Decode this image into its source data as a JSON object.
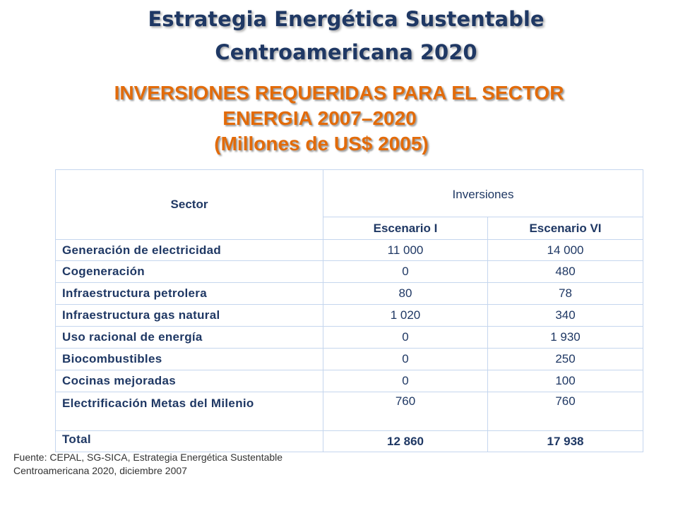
{
  "title": {
    "line1": "Estrategia Energética Sustentable",
    "line2": "Centroamericana 2020"
  },
  "subtitle": {
    "line1": "INVERSIONES  REQUERIDAS PARA  EL SECTOR",
    "line2": "ENERGIA 2007–2020",
    "line3": "(Millones de  US$ 2005)"
  },
  "table": {
    "sector_header": "Sector",
    "group_header": "Inversiones",
    "columns": [
      "Escenario I",
      "Escenario VI"
    ],
    "rows": [
      {
        "sector": "Generación de electricidad",
        "esc1": "11 000",
        "esc6": "14 000"
      },
      {
        "sector": "Cogeneración",
        "esc1": "0",
        "esc6": "480"
      },
      {
        "sector": "Infraestructura petrolera",
        "esc1": "80",
        "esc6": "78"
      },
      {
        "sector": "Infraestructura gas natural",
        "esc1": "1 020",
        "esc6": "340"
      },
      {
        "sector": "Uso racional de energía",
        "esc1": "0",
        "esc6": "1 930"
      },
      {
        "sector": "Biocombustibles",
        "esc1": "0",
        "esc6": "250"
      },
      {
        "sector": "Cocinas mejoradas",
        "esc1": "0",
        "esc6": "100"
      },
      {
        "sector": "Electrificación Metas del Milenio",
        "esc1": "760",
        "esc6": "760"
      }
    ],
    "total": {
      "label": "Total",
      "esc1": "12 860",
      "esc6": "17 938"
    }
  },
  "source": {
    "line1": "Fuente: CEPAL, SG-SICA, Estrategia Energética Sustentable",
    "line2": "Centroamericana 2020, diciembre 2007"
  },
  "colors": {
    "title": "#1f3864",
    "subtitle": "#e26b0a",
    "table_text": "#1f3864",
    "table_border": "#c5d6ee"
  }
}
